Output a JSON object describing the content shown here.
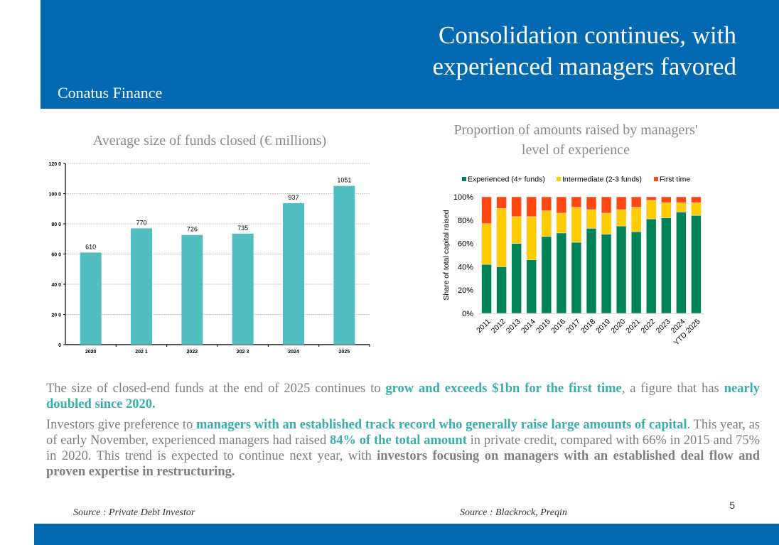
{
  "header": {
    "title_line1": "Consolidation continues, with",
    "title_line2": "experienced managers favored",
    "brand": "Conatus Finance",
    "color": "#0369B3"
  },
  "chart_data": [
    {
      "type": "bar",
      "title": "Average size of funds closed (€ millions)",
      "categories": [
        "2020",
        "2021",
        "2022",
        "2023",
        "2024",
        "2025"
      ],
      "category_labels": [
        "2020",
        "202 1",
        "2022",
        "202 3",
        "2024",
        "2025"
      ],
      "values": [
        610,
        770,
        726,
        735,
        937,
        1051
      ],
      "value_labels": [
        "610",
        "770",
        "726",
        "735",
        "937",
        "1051"
      ],
      "ylim": [
        0,
        1200
      ],
      "yticks": [
        0,
        200,
        400,
        600,
        800,
        1000,
        1200
      ],
      "ytick_labels": [
        "0",
        "20 0",
        "40 0",
        "60 0",
        "80 0",
        "100 0",
        "120 0"
      ],
      "grid": true,
      "bar_color": "#52BDC1",
      "xlabel": "",
      "ylabel": ""
    },
    {
      "type": "bar",
      "stacked": true,
      "title_line1": "Proportion of amounts raised by managers'",
      "title_line2": "level of experience",
      "ylabel": "Share of total capital raised",
      "xlabel": "",
      "ylim": [
        0,
        100
      ],
      "yticks": [
        0,
        20,
        40,
        60,
        80,
        100
      ],
      "ytick_labels": [
        "0%",
        "20%",
        "40%",
        "60%",
        "80%",
        "100%"
      ],
      "legend_position": "top",
      "categories": [
        "2011",
        "2012",
        "2013",
        "2014",
        "2015",
        "2016",
        "2017",
        "2018",
        "2019",
        "2020",
        "2021",
        "2022",
        "2023",
        "2024",
        "YTD 2025"
      ],
      "series": [
        {
          "name": "Experienced (4+ funds)",
          "color": "#008457",
          "values": [
            42,
            40,
            60,
            46,
            66,
            69,
            61,
            73,
            68,
            75,
            70,
            81,
            82,
            87,
            84
          ]
        },
        {
          "name": "Intermediate (2-3 funds)",
          "color": "#FFCC00",
          "values": [
            35,
            50,
            23,
            37,
            22,
            17,
            30,
            16,
            18,
            14,
            21,
            16,
            13,
            8,
            11
          ]
        },
        {
          "name": "First time",
          "color": "#FF4713",
          "values": [
            23,
            10,
            17,
            17,
            12,
            14,
            9,
            11,
            14,
            11,
            9,
            3,
            5,
            5,
            5
          ]
        }
      ]
    }
  ],
  "body": {
    "p1": [
      {
        "t": "The size of closed-end funds at the end of 2025 continues to ",
        "s": "n"
      },
      {
        "t": "grow and exceeds $1bn for the first time",
        "s": "hl"
      },
      {
        "t": ", a figure that has ",
        "s": "n"
      },
      {
        "t": "nearly doubled since 2020.",
        "s": "hl"
      }
    ],
    "p2": [
      {
        "t": "Investors give preference to ",
        "s": "n"
      },
      {
        "t": "managers with an established track record who generally raise large amounts of capital",
        "s": "hl"
      },
      {
        "t": ". This year, as of early November, experienced managers had raised ",
        "s": "n"
      },
      {
        "t": "84% of the total amount",
        "s": "hl"
      },
      {
        "t": " in private credit, compared with 66% in 2015 and 75% in 2020. This trend is expected to continue next year, with ",
        "s": "n"
      },
      {
        "t": "investors focusing on managers with an established deal flow and proven expertise in restructuring.",
        "s": "bd"
      }
    ]
  },
  "footer": {
    "source_left": "Source : Private Debt Investor",
    "source_right": "Source : Blackrock, Preqin",
    "page_number": "5"
  }
}
